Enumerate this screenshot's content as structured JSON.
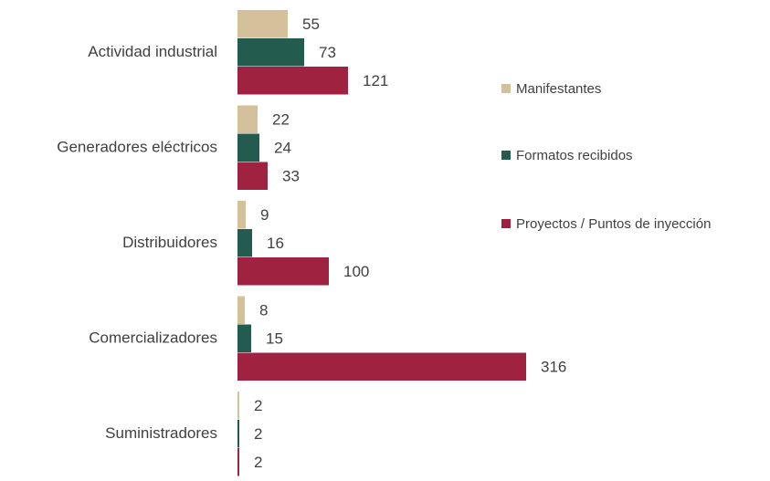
{
  "chart_data": {
    "type": "bar",
    "orientation": "horizontal",
    "categories": [
      "Actividad industrial",
      "Generadores eléctricos",
      "Distribuidores",
      "Comercializadores",
      "Suministradores"
    ],
    "series": [
      {
        "name": "Manifestantes",
        "color": "#d4c19c",
        "values": [
          55,
          22,
          9,
          8,
          2
        ]
      },
      {
        "name": "Formatos recibidos",
        "color": "#235b4e",
        "values": [
          73,
          24,
          16,
          15,
          2
        ]
      },
      {
        "name": "Proyectos / Puntos de inyección",
        "color": "#9f2241",
        "values": [
          121,
          33,
          100,
          316,
          2
        ]
      }
    ],
    "legend": "right"
  }
}
